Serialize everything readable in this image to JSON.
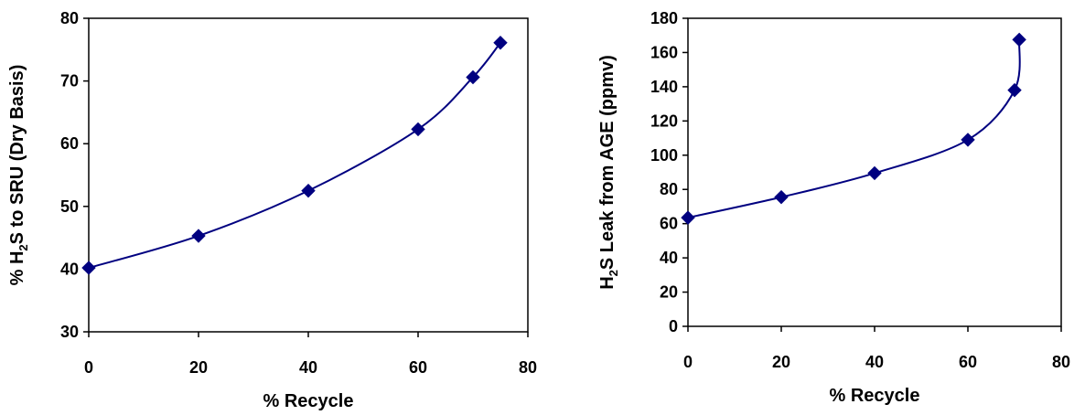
{
  "chart_data": [
    {
      "type": "line",
      "title": "",
      "xlabel": "% Recycle",
      "ylabel": "% H2S to SRU (Dry Basis)",
      "ylabel_parts": {
        "prefix": "% H",
        "sub": "2",
        "suffix": "S to SRU (Dry Basis)"
      },
      "xlim": [
        0,
        80
      ],
      "ylim": [
        30,
        80
      ],
      "xticks": [
        0,
        20,
        40,
        60,
        80
      ],
      "yticks": [
        30,
        40,
        50,
        60,
        70,
        80
      ],
      "grid": false,
      "marker": "diamond",
      "smooth": true,
      "series": [
        {
          "x": [
            0,
            20,
            40,
            60,
            70,
            75
          ],
          "y": [
            40.2,
            45.3,
            52.5,
            62.3,
            70.6,
            76.1
          ]
        }
      ]
    },
    {
      "type": "line",
      "title": "",
      "xlabel": "% Recycle",
      "ylabel": "H2S Leak from AGE (ppmv)",
      "ylabel_parts": {
        "prefix": "H",
        "sub": "2",
        "suffix": "S Leak from AGE (ppmv)"
      },
      "xlim": [
        0,
        80
      ],
      "ylim": [
        0,
        180
      ],
      "xticks": [
        0,
        20,
        40,
        60,
        80
      ],
      "yticks": [
        0,
        20,
        40,
        60,
        80,
        100,
        120,
        140,
        160,
        180
      ],
      "grid": false,
      "marker": "diamond",
      "smooth": true,
      "series": [
        {
          "x": [
            0,
            20,
            40,
            60,
            70,
            71
          ],
          "y": [
            63.5,
            75.5,
            89.5,
            109.0,
            138.0,
            167.5
          ]
        }
      ]
    }
  ],
  "colors": {
    "series": "#000080",
    "axis": "#000000",
    "background": "#ffffff"
  }
}
